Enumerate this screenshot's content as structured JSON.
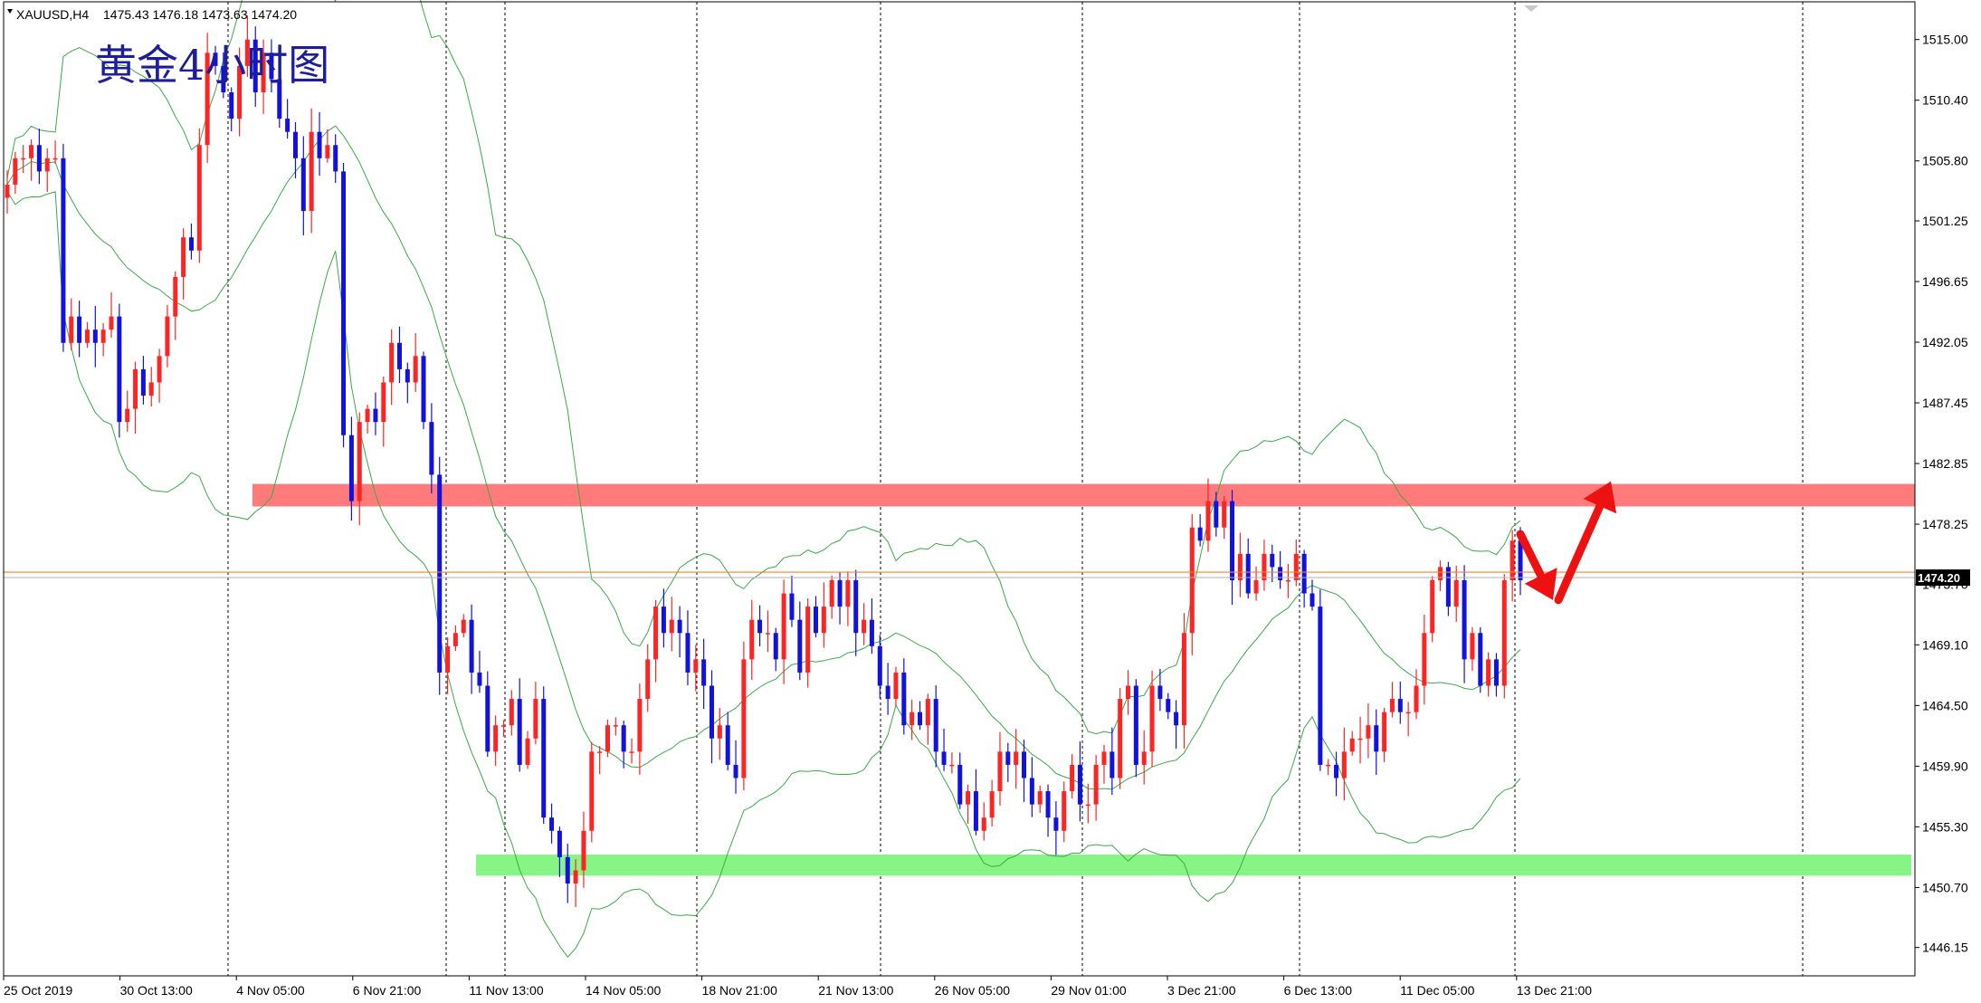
{
  "header": {
    "symbol_label": "XAUUSD,H4",
    "ohlc": "1475.43 1476.18 1473.63 1474.20"
  },
  "annotation_title": "黄金4小时图",
  "current_price_label": "1474.20",
  "colors": {
    "bull": "#ff2424",
    "bear": "#1212e0",
    "bollinger": "#3aaa46",
    "resistance_zone": "#ff7b7b",
    "support_zone": "#86f586",
    "price_line": "#ff7f2a",
    "arrow": "#ee1111",
    "grid": "#000000"
  },
  "chart_data": {
    "type": "candlestick",
    "symbol": "XAUUSD",
    "timeframe": "H4",
    "ylim": [
      1444.0,
      1518.0
    ],
    "y_ticks": [
      "1515.00",
      "1510.40",
      "1505.80",
      "1501.25",
      "1496.65",
      "1492.05",
      "1487.45",
      "1482.85",
      "1478.25",
      "1473.70",
      "1469.10",
      "1464.50",
      "1459.90",
      "1455.30",
      "1450.70",
      "1446.15"
    ],
    "x_ticks": [
      "25 Oct 2019",
      "30 Oct 13:00",
      "4 Nov 05:00",
      "6 Nov 21:00",
      "11 Nov 13:00",
      "14 Nov 05:00",
      "18 Nov 21:00",
      "21 Nov 13:00",
      "26 Nov 05:00",
      "29 Nov 01:00",
      "3 Dec 21:00",
      "6 Dec 13:00",
      "11 Dec 05:00",
      "13 Dec 21:00"
    ],
    "vertical_grid_after_tick": [
      1,
      3,
      4,
      6,
      7,
      9,
      11,
      12
    ],
    "current_price": 1474.2,
    "resistance_zone": [
      1479.6,
      1481.3
    ],
    "support_zone": [
      1451.6,
      1453.2
    ],
    "candles_close": [
      1504,
      1506,
      1506,
      1507,
      1505,
      1506,
      1506,
      1492,
      1494,
      1492,
      1493,
      1492,
      1493,
      1494,
      1486,
      1487,
      1490,
      1488,
      1489,
      1491,
      1494,
      1497,
      1500,
      1499,
      1507,
      1514,
      1513,
      1511,
      1509,
      1513,
      1515,
      1511,
      1514,
      1512,
      1509,
      1508,
      1506,
      1502,
      1508,
      1506,
      1507,
      1505,
      1485,
      1480,
      1486,
      1487,
      1486,
      1489,
      1492,
      1490,
      1489,
      1491,
      1486,
      1482,
      1467,
      1469,
      1470,
      1471,
      1467,
      1466,
      1461,
      1463,
      1463,
      1465,
      1460,
      1462,
      1465,
      1456,
      1455,
      1453,
      1451,
      1452,
      1455,
      1461,
      1461,
      1463,
      1463,
      1461,
      1461,
      1465,
      1468,
      1472,
      1470,
      1471,
      1470,
      1467,
      1468,
      1466,
      1462,
      1463,
      1460,
      1459,
      1468,
      1471,
      1470,
      1470,
      1468,
      1473,
      1471,
      1467,
      1472,
      1470,
      1472,
      1474,
      1472,
      1474,
      1470,
      1471,
      1469,
      1466,
      1465,
      1467,
      1463,
      1464,
      1463,
      1465,
      1461,
      1460,
      1460,
      1457,
      1458,
      1455,
      1456,
      1458,
      1461,
      1460,
      1461,
      1459,
      1457,
      1458,
      1456,
      1455,
      1458,
      1460,
      1457,
      1457,
      1460,
      1461,
      1459,
      1465,
      1466,
      1460,
      1461,
      1466,
      1465,
      1464,
      1463,
      1470,
      1478,
      1477,
      1480,
      1478,
      1480,
      1474,
      1476,
      1473,
      1474,
      1476,
      1475,
      1474,
      1474,
      1476,
      1473,
      1472,
      1460,
      1460,
      1459,
      1461,
      1462,
      1462,
      1463,
      1461,
      1464,
      1465,
      1464,
      1464,
      1466,
      1470,
      1474,
      1475,
      1472,
      1474,
      1468,
      1470,
      1466,
      1468,
      1466,
      1474,
      1477,
      1474
    ],
    "annotations": [
      {
        "type": "arrow",
        "direction": "down",
        "from": 1477.5,
        "to": 1472.5
      },
      {
        "type": "arrow",
        "direction": "up",
        "from": 1472.5,
        "to": 1481.5
      }
    ]
  }
}
